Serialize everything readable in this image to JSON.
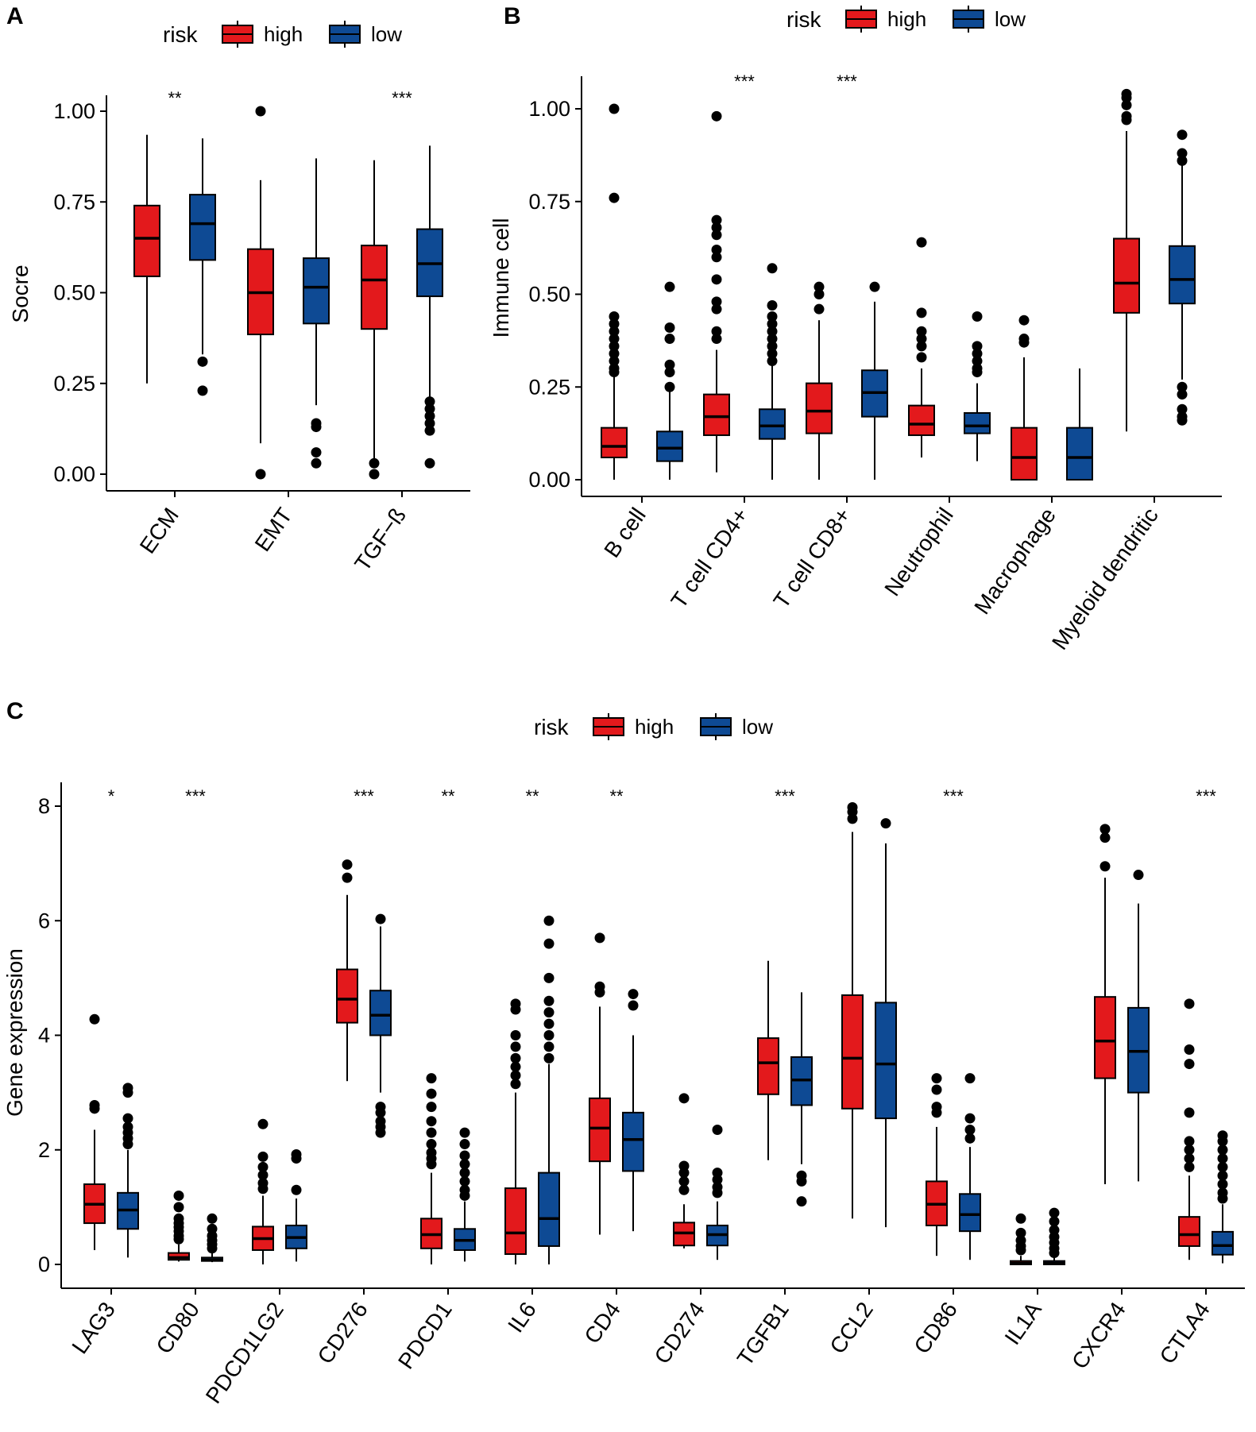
{
  "legend": {
    "title": "risk",
    "labels": [
      "high",
      "low"
    ],
    "colors": {
      "high": "#e3191c",
      "low": "#0e4a94"
    }
  },
  "chart_data": [
    {
      "panel": "A",
      "type": "boxplot",
      "ylabel": "Socre",
      "ylim": [
        -0.05,
        1.05
      ],
      "yticks": [
        0.0,
        0.25,
        0.5,
        0.75,
        1.0
      ],
      "ytick_labels": [
        "0.00",
        "0.25",
        "0.50",
        "0.75",
        "1.00"
      ],
      "categories": [
        "ECM",
        "EMT",
        "TGF−ß"
      ],
      "significance": [
        "**",
        "",
        "***"
      ],
      "series": [
        {
          "name": "high",
          "boxes": [
            {
              "min": 0.25,
              "q1": 0.545,
              "median": 0.65,
              "q3": 0.74,
              "max": 0.935,
              "outliers": []
            },
            {
              "min": 0.085,
              "q1": 0.385,
              "median": 0.5,
              "q3": 0.62,
              "max": 0.81,
              "outliers": [
                1.0,
                0.0
              ]
            },
            {
              "min": 0.04,
              "q1": 0.4,
              "median": 0.535,
              "q3": 0.63,
              "max": 0.865,
              "outliers": [
                0.03,
                0.0
              ]
            }
          ]
        },
        {
          "name": "low",
          "boxes": [
            {
              "min": 0.33,
              "q1": 0.59,
              "median": 0.69,
              "q3": 0.77,
              "max": 0.925,
              "outliers": [
                0.31,
                0.23
              ]
            },
            {
              "min": 0.19,
              "q1": 0.415,
              "median": 0.515,
              "q3": 0.595,
              "max": 0.87,
              "outliers": [
                0.14,
                0.13,
                0.06,
                0.03
              ]
            },
            {
              "min": 0.21,
              "q1": 0.49,
              "median": 0.58,
              "q3": 0.675,
              "max": 0.905,
              "outliers": [
                0.2,
                0.18,
                0.16,
                0.14,
                0.12,
                0.03
              ]
            }
          ]
        }
      ]
    },
    {
      "panel": "B",
      "type": "boxplot",
      "ylabel": "Immune cell",
      "ylim": [
        -0.05,
        1.08
      ],
      "yticks": [
        0.0,
        0.25,
        0.5,
        0.75,
        1.0
      ],
      "ytick_labels": [
        "0.00",
        "0.25",
        "0.50",
        "0.75",
        "1.00"
      ],
      "categories": [
        "B cell",
        "T cell CD4+",
        "T cell CD8+",
        "Neutrophil",
        "Macrophage",
        "Myeloid dendritic"
      ],
      "significance": [
        "",
        "***",
        "***",
        "",
        "",
        ""
      ],
      "series": [
        {
          "name": "high",
          "boxes": [
            {
              "min": 0.0,
              "q1": 0.06,
              "median": 0.09,
              "q3": 0.14,
              "max": 0.28,
              "outliers": [
                1.0,
                0.76,
                0.44,
                0.42,
                0.4,
                0.38,
                0.36,
                0.34,
                0.32,
                0.3,
                0.29
              ]
            },
            {
              "min": 0.02,
              "q1": 0.12,
              "median": 0.17,
              "q3": 0.23,
              "max": 0.35,
              "outliers": [
                0.98,
                0.7,
                0.68,
                0.66,
                0.62,
                0.6,
                0.54,
                0.48,
                0.46,
                0.4,
                0.38
              ]
            },
            {
              "min": 0.0,
              "q1": 0.125,
              "median": 0.185,
              "q3": 0.26,
              "max": 0.43,
              "outliers": [
                0.52,
                0.5,
                0.46
              ]
            },
            {
              "min": 0.06,
              "q1": 0.12,
              "median": 0.15,
              "q3": 0.2,
              "max": 0.3,
              "outliers": [
                0.64,
                0.45,
                0.4,
                0.38,
                0.36,
                0.33
              ]
            },
            {
              "min": 0.0,
              "q1": 0.0,
              "median": 0.06,
              "q3": 0.14,
              "max": 0.33,
              "outliers": [
                0.43,
                0.38,
                0.37
              ]
            },
            {
              "min": 0.13,
              "q1": 0.45,
              "median": 0.53,
              "q3": 0.65,
              "max": 0.94,
              "outliers": [
                1.04,
                1.03,
                1.01,
                0.98,
                0.97
              ]
            }
          ]
        },
        {
          "name": "low",
          "boxes": [
            {
              "min": 0.0,
              "q1": 0.05,
              "median": 0.085,
              "q3": 0.13,
              "max": 0.24,
              "outliers": [
                0.52,
                0.41,
                0.38,
                0.31,
                0.29,
                0.25
              ]
            },
            {
              "min": 0.0,
              "q1": 0.11,
              "median": 0.145,
              "q3": 0.19,
              "max": 0.31,
              "outliers": [
                0.57,
                0.47,
                0.44,
                0.42,
                0.4,
                0.38,
                0.36,
                0.34,
                0.32
              ]
            },
            {
              "min": 0.0,
              "q1": 0.17,
              "median": 0.235,
              "q3": 0.295,
              "max": 0.48,
              "outliers": [
                0.52
              ]
            },
            {
              "min": 0.05,
              "q1": 0.125,
              "median": 0.145,
              "q3": 0.18,
              "max": 0.26,
              "outliers": [
                0.44,
                0.36,
                0.34,
                0.32,
                0.3,
                0.29
              ]
            },
            {
              "min": 0.0,
              "q1": 0.0,
              "median": 0.06,
              "q3": 0.14,
              "max": 0.3,
              "outliers": []
            },
            {
              "min": 0.27,
              "q1": 0.475,
              "median": 0.54,
              "q3": 0.63,
              "max": 0.85,
              "outliers": [
                0.93,
                0.88,
                0.86,
                0.25,
                0.23,
                0.19,
                0.17,
                0.16
              ]
            }
          ]
        }
      ]
    },
    {
      "panel": "C",
      "type": "boxplot",
      "ylabel": "Gene expression",
      "ylim": [
        -0.4,
        8.4
      ],
      "yticks": [
        0,
        2,
        4,
        6,
        8
      ],
      "ytick_labels": [
        "0",
        "2",
        "4",
        "6",
        "8"
      ],
      "categories": [
        "LAG3",
        "CD80",
        "PDCD1LG2",
        "CD276",
        "PDCD1",
        "IL6",
        "CD4",
        "CD274",
        "TGFB1",
        "CCL2",
        "CD86",
        "IL1A",
        "CXCR4",
        "CTLA4"
      ],
      "significance": [
        "*",
        "***",
        "",
        "***",
        "**",
        "**",
        "**",
        "",
        "***",
        "",
        "***",
        "",
        "",
        "***"
      ],
      "series": [
        {
          "name": "high",
          "boxes": [
            {
              "min": 0.25,
              "q1": 0.72,
              "median": 1.05,
              "q3": 1.4,
              "max": 2.35,
              "outliers": [
                4.28,
                2.78,
                2.72
              ]
            },
            {
              "min": 0.05,
              "q1": 0.08,
              "median": 0.12,
              "q3": 0.2,
              "max": 0.35,
              "outliers": [
                1.2,
                1.0,
                0.8,
                0.72,
                0.65,
                0.58,
                0.5,
                0.44
              ]
            },
            {
              "min": 0.0,
              "q1": 0.25,
              "median": 0.45,
              "q3": 0.66,
              "max": 1.2,
              "outliers": [
                2.45,
                1.88,
                1.7,
                1.56,
                1.42,
                1.32
              ]
            },
            {
              "min": 3.2,
              "q1": 4.22,
              "median": 4.63,
              "q3": 5.15,
              "max": 6.45,
              "outliers": [
                6.98,
                6.75
              ]
            },
            {
              "min": 0.0,
              "q1": 0.28,
              "median": 0.52,
              "q3": 0.8,
              "max": 1.6,
              "outliers": [
                3.25,
                2.98,
                2.75,
                2.5,
                2.3,
                2.1,
                1.95,
                1.85,
                1.75
              ]
            },
            {
              "min": 0.0,
              "q1": 0.18,
              "median": 0.55,
              "q3": 1.33,
              "max": 3.0,
              "outliers": [
                4.55,
                4.45,
                4.0,
                3.8,
                3.6,
                3.45,
                3.3,
                3.15
              ]
            },
            {
              "min": 0.52,
              "q1": 1.8,
              "median": 2.38,
              "q3": 2.9,
              "max": 4.5,
              "outliers": [
                5.7,
                4.85,
                4.75
              ]
            },
            {
              "min": 0.28,
              "q1": 0.33,
              "median": 0.55,
              "q3": 0.73,
              "max": 1.05,
              "outliers": [
                2.9,
                1.72,
                1.6,
                1.45,
                1.3
              ]
            },
            {
              "min": 1.82,
              "q1": 2.97,
              "median": 3.52,
              "q3": 3.95,
              "max": 5.3,
              "outliers": []
            },
            {
              "min": 0.8,
              "q1": 2.72,
              "median": 3.6,
              "q3": 4.7,
              "max": 7.55,
              "outliers": [
                7.98,
                7.9,
                7.78
              ]
            },
            {
              "min": 0.15,
              "q1": 0.68,
              "median": 1.05,
              "q3": 1.45,
              "max": 2.4,
              "outliers": [
                3.25,
                3.05,
                2.75,
                2.65
              ]
            },
            {
              "min": 0.0,
              "q1": 0.0,
              "median": 0.02,
              "q3": 0.06,
              "max": 0.15,
              "outliers": [
                0.8,
                0.55,
                0.42,
                0.32,
                0.25
              ]
            },
            {
              "min": 1.4,
              "q1": 3.25,
              "median": 3.9,
              "q3": 4.67,
              "max": 6.75,
              "outliers": [
                7.6,
                7.45,
                6.95
              ]
            },
            {
              "min": 0.08,
              "q1": 0.32,
              "median": 0.52,
              "q3": 0.83,
              "max": 1.55,
              "outliers": [
                4.55,
                3.75,
                3.5,
                2.65,
                2.15,
                2.0,
                1.85,
                1.7
              ]
            }
          ]
        },
        {
          "name": "low",
          "boxes": [
            {
              "min": 0.12,
              "q1": 0.62,
              "median": 0.95,
              "q3": 1.25,
              "max": 2.0,
              "outliers": [
                3.08,
                3.0,
                2.55,
                2.4,
                2.3,
                2.2,
                2.1
              ]
            },
            {
              "min": 0.04,
              "q1": 0.06,
              "median": 0.08,
              "q3": 0.12,
              "max": 0.22,
              "outliers": [
                0.8,
                0.62,
                0.5,
                0.42,
                0.35,
                0.28
              ]
            },
            {
              "min": 0.05,
              "q1": 0.28,
              "median": 0.47,
              "q3": 0.68,
              "max": 1.15,
              "outliers": [
                1.92,
                1.85,
                1.3
              ]
            },
            {
              "min": 3.0,
              "q1": 4.0,
              "median": 4.35,
              "q3": 4.78,
              "max": 5.9,
              "outliers": [
                6.03,
                2.75,
                2.65,
                2.5,
                2.4,
                2.3
              ]
            },
            {
              "min": 0.05,
              "q1": 0.25,
              "median": 0.42,
              "q3": 0.62,
              "max": 1.1,
              "outliers": [
                2.3,
                2.1,
                1.9,
                1.75,
                1.6,
                1.45,
                1.3,
                1.2
              ]
            },
            {
              "min": 0.0,
              "q1": 0.32,
              "median": 0.8,
              "q3": 1.6,
              "max": 3.5,
              "outliers": [
                6.0,
                5.6,
                5.0,
                4.6,
                4.4,
                4.2,
                4.0,
                3.8,
                3.6
              ]
            },
            {
              "min": 0.58,
              "q1": 1.63,
              "median": 2.18,
              "q3": 2.65,
              "max": 4.0,
              "outliers": [
                4.72,
                4.52
              ]
            },
            {
              "min": 0.08,
              "q1": 0.33,
              "median": 0.52,
              "q3": 0.68,
              "max": 1.1,
              "outliers": [
                2.35,
                1.6,
                1.48,
                1.35,
                1.25
              ]
            },
            {
              "min": 1.75,
              "q1": 2.78,
              "median": 3.22,
              "q3": 3.62,
              "max": 4.75,
              "outliers": [
                1.55,
                1.45,
                1.1
              ]
            },
            {
              "min": 0.65,
              "q1": 2.55,
              "median": 3.5,
              "q3": 4.57,
              "max": 7.35,
              "outliers": [
                7.7
              ]
            },
            {
              "min": 0.08,
              "q1": 0.58,
              "median": 0.87,
              "q3": 1.23,
              "max": 2.05,
              "outliers": [
                3.25,
                2.55,
                2.35,
                2.2
              ]
            },
            {
              "min": 0.0,
              "q1": 0.0,
              "median": 0.02,
              "q3": 0.06,
              "max": 0.15,
              "outliers": [
                0.9,
                0.75,
                0.6,
                0.48,
                0.38,
                0.28,
                0.2
              ]
            },
            {
              "min": 1.45,
              "q1": 3.0,
              "median": 3.72,
              "q3": 4.48,
              "max": 6.3,
              "outliers": [
                6.8
              ]
            },
            {
              "min": 0.02,
              "q1": 0.17,
              "median": 0.33,
              "q3": 0.57,
              "max": 1.05,
              "outliers": [
                2.25,
                2.15,
                2.0,
                1.85,
                1.7,
                1.55,
                1.4,
                1.25,
                1.15
              ]
            }
          ]
        }
      ]
    }
  ]
}
